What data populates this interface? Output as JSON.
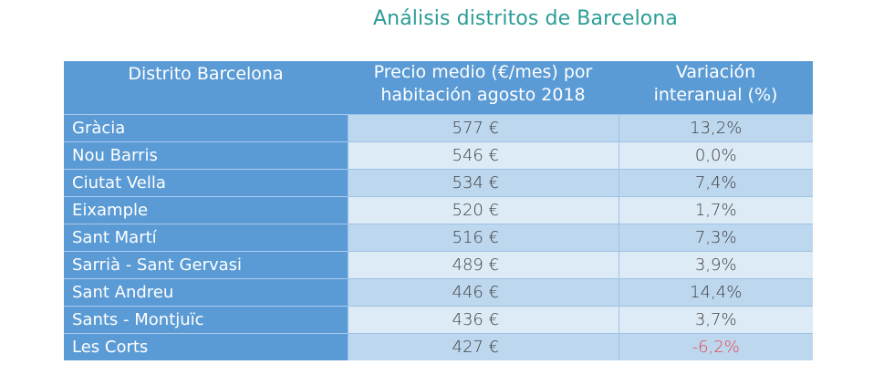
{
  "title": "Análisis distritos de Barcelona",
  "table": {
    "headers": [
      "Distrito Barcelona",
      "Precio medio (€/mes) por habitación agosto 2018",
      "Variación interanual (%)"
    ],
    "header_lines": {
      "col1": [
        "Distrito Barcelona"
      ],
      "col2": [
        "Precio medio (€/mes) por",
        "habitación agosto 2018"
      ],
      "col3": [
        "Variación",
        "interanual (%)"
      ]
    },
    "rows": [
      {
        "district": "Gràcia",
        "price": "577 €",
        "variation": "13,2%"
      },
      {
        "district": "Nou Barris",
        "price": "546 €",
        "variation": "0,0%"
      },
      {
        "district": "Ciutat Vella",
        "price": "534 €",
        "variation": "7,4%"
      },
      {
        "district": "Eixample",
        "price": "520 €",
        "variation": "1,7%"
      },
      {
        "district": "Sant Martí",
        "price": "516 €",
        "variation": "7,3%"
      },
      {
        "district": "Sarrià - Sant Gervasi",
        "price": "489 €",
        "variation": "3,9%"
      },
      {
        "district": "Sant Andreu",
        "price": "446 €",
        "variation": "14,4%"
      },
      {
        "district": "Sants - Montjuïc",
        "price": "436 €",
        "variation": "3,7%"
      },
      {
        "district": "Les Corts",
        "price": "427 €",
        "variation": "-6,2%"
      }
    ]
  },
  "colors": {
    "title": "#2a9d96",
    "header_bg": "#5b9bd5",
    "row_dark": "#bdd7ee",
    "row_light": "#ddebf7",
    "negative": "#e8474f"
  }
}
